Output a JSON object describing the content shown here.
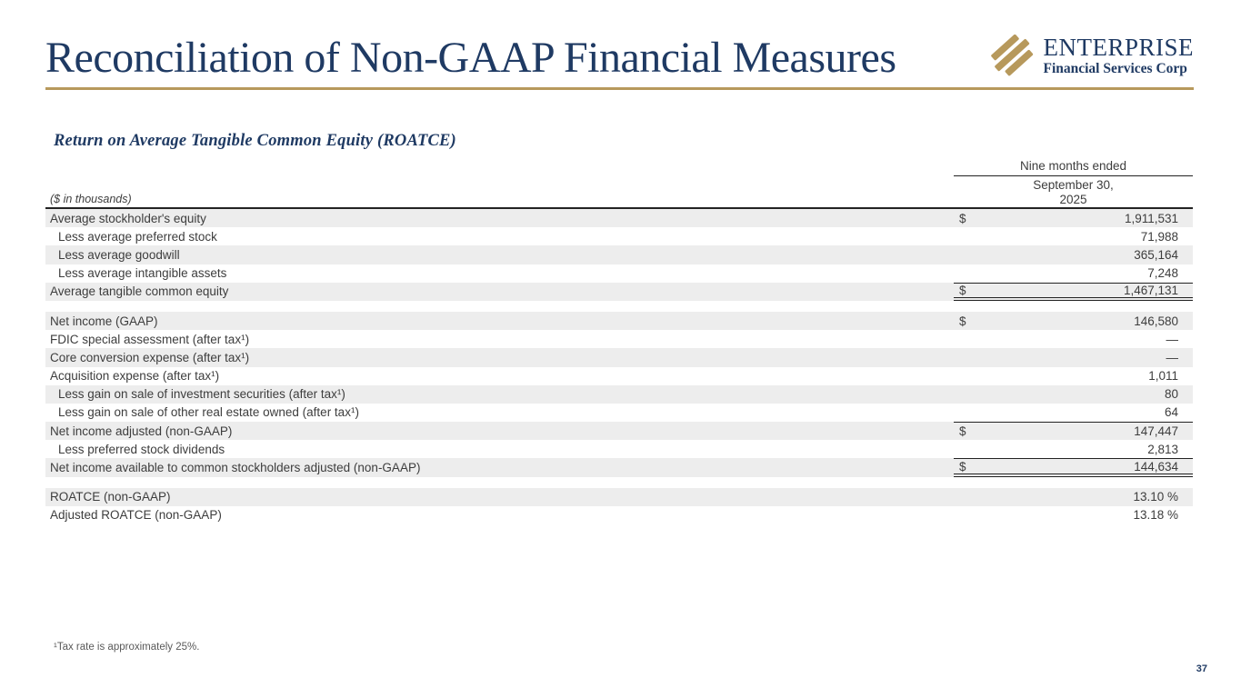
{
  "slide": {
    "title": "Reconciliation of Non-GAAP Financial Measures",
    "page_number": "37"
  },
  "logo": {
    "name": "ENTERPRISE",
    "tagline": "Financial Services Corp"
  },
  "section": {
    "heading": "Return on Average Tangible Common Equity (ROATCE)"
  },
  "table": {
    "units_label": "($ in thousands)",
    "period_header": "Nine months ended",
    "period_date_line1": "September 30,",
    "period_date_line2": "2025",
    "rows": [
      {
        "label": "Average stockholder's equity",
        "dollar": "$",
        "value": "1,911,531",
        "indent": false,
        "shaded": true,
        "rule": "none",
        "gap_before": false
      },
      {
        "label": "Less average preferred stock",
        "dollar": "",
        "value": "71,988",
        "indent": true,
        "shaded": false,
        "rule": "none",
        "gap_before": false
      },
      {
        "label": "Less average goodwill",
        "dollar": "",
        "value": "365,164",
        "indent": true,
        "shaded": true,
        "rule": "none",
        "gap_before": false
      },
      {
        "label": "Less average intangible assets",
        "dollar": "",
        "value": "7,248",
        "indent": true,
        "shaded": false,
        "rule": "none",
        "gap_before": false
      },
      {
        "label": "Average tangible common equity",
        "dollar": "$",
        "value": "1,467,131",
        "indent": false,
        "shaded": true,
        "rule": "total",
        "gap_before": false
      },
      {
        "label": "Net income (GAAP)",
        "dollar": "$",
        "value": "146,580",
        "indent": false,
        "shaded": true,
        "rule": "none",
        "gap_before": true
      },
      {
        "label": "FDIC special assessment (after tax¹)",
        "dollar": "",
        "value": "—",
        "indent": false,
        "shaded": false,
        "rule": "none",
        "gap_before": false
      },
      {
        "label": "Core conversion expense (after tax¹)",
        "dollar": "",
        "value": "—",
        "indent": false,
        "shaded": true,
        "rule": "none",
        "gap_before": false
      },
      {
        "label": "Acquisition expense (after tax¹)",
        "dollar": "",
        "value": "1,011",
        "indent": false,
        "shaded": false,
        "rule": "none",
        "gap_before": false
      },
      {
        "label": "Less gain on sale of investment securities (after tax¹)",
        "dollar": "",
        "value": "80",
        "indent": true,
        "shaded": true,
        "rule": "none",
        "gap_before": false
      },
      {
        "label": "Less gain on sale of other real estate owned (after tax¹)",
        "dollar": "",
        "value": "64",
        "indent": true,
        "shaded": false,
        "rule": "none",
        "gap_before": false
      },
      {
        "label": "Net income adjusted (non-GAAP)",
        "dollar": "$",
        "value": "147,447",
        "indent": false,
        "shaded": true,
        "rule": "top",
        "gap_before": false
      },
      {
        "label": "Less preferred stock dividends",
        "dollar": "",
        "value": "2,813",
        "indent": true,
        "shaded": false,
        "rule": "none",
        "gap_before": false
      },
      {
        "label": "Net income available to common stockholders adjusted (non-GAAP)",
        "dollar": "$",
        "value": "144,634",
        "indent": false,
        "shaded": true,
        "rule": "total",
        "gap_before": false
      },
      {
        "label": "ROATCE (non-GAAP)",
        "dollar": "",
        "value": "13.10 %",
        "indent": false,
        "shaded": true,
        "rule": "none",
        "gap_before": true
      },
      {
        "label": "Adjusted ROATCE (non-GAAP)",
        "dollar": "",
        "value": "13.18 %",
        "indent": false,
        "shaded": false,
        "rule": "none",
        "gap_before": false
      }
    ]
  },
  "footnote": "¹Tax rate is approximately 25%.",
  "colors": {
    "navy": "#1F3A63",
    "gold": "#B7995C",
    "row_shade": "#EDEDED",
    "table_text": "#3D3D3D",
    "border_dark": "#222222"
  }
}
